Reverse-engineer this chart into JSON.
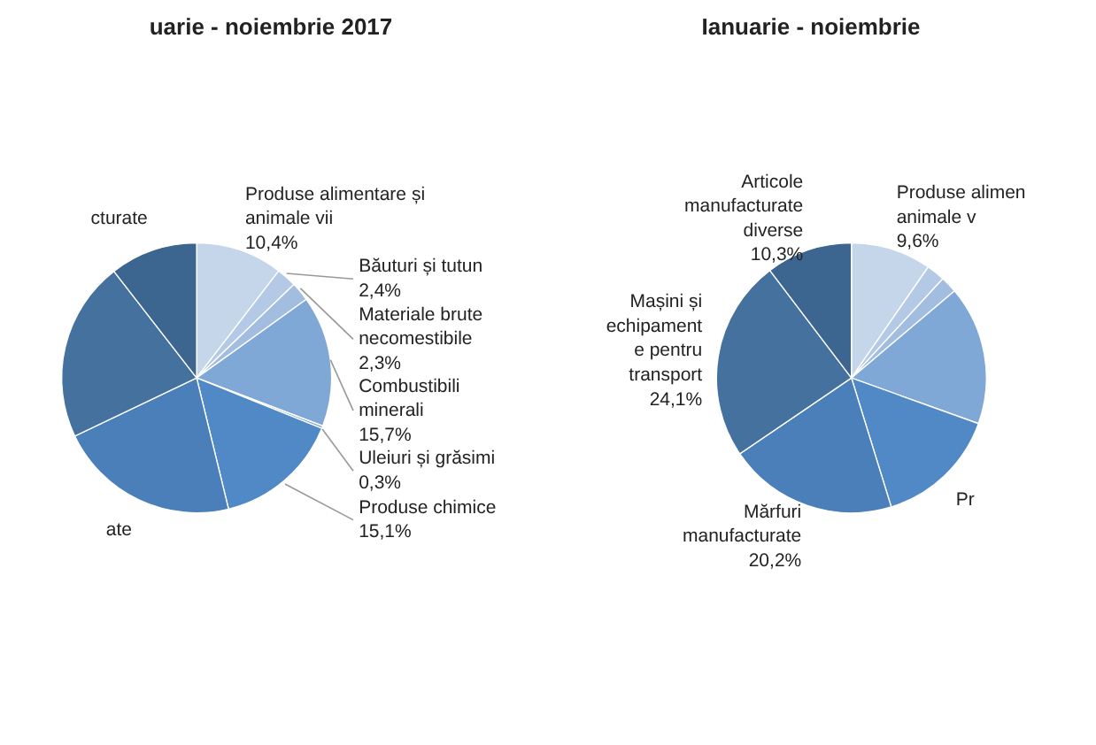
{
  "chart_data": [
    {
      "type": "pie",
      "title": "uarie - noiembrie 2017",
      "categories": [
        "Produse alimentare și\nanimale vii",
        "Băuturi și tutun",
        "Materiale brute\nnecomestibile",
        "Combustibili\nminerali",
        "Uleiuri și grăsimi",
        "Produse chimice",
        "ate",
        null,
        "cturate"
      ],
      "values": [
        10.4,
        2.4,
        2.3,
        15.7,
        0.3,
        15.1,
        21.7,
        21.6,
        10.5
      ],
      "value_labels": [
        "10,4%",
        "2,4%",
        "2,3%",
        "15,7%",
        "0,3%",
        "15,1%",
        null,
        null,
        null
      ],
      "colors": [
        "#c6d6ea",
        "#b3c9e5",
        "#a2bde0",
        "#80a8d7",
        "#6e9acf",
        "#5089c6",
        "#4a7fb9",
        "#45719f",
        "#3c6690"
      ]
    },
    {
      "type": "pie",
      "title": "Ianuarie - noiembrie",
      "categories": [
        "Produse alimen\nanimale v",
        null,
        null,
        null,
        null,
        "Pr",
        "Mărfuri\nmanufacturate",
        "Mașini și\nechipament\ne pentru\ntransport",
        "Articole\nmanufacturate\ndiverse"
      ],
      "values": [
        9.6,
        2.2,
        2.0,
        16.6,
        null,
        14.7,
        20.2,
        24.1,
        10.3
      ],
      "value_labels": [
        "9,6%",
        null,
        null,
        null,
        null,
        null,
        "20,2%",
        "24,1%",
        "10,3%"
      ],
      "colors": [
        "#c6d6ea",
        "#b3c9e5",
        "#a2bde0",
        "#80a8d7",
        "#6e9acf",
        "#5089c6",
        "#4a7fb9",
        "#45719f",
        "#3c6690"
      ]
    }
  ]
}
